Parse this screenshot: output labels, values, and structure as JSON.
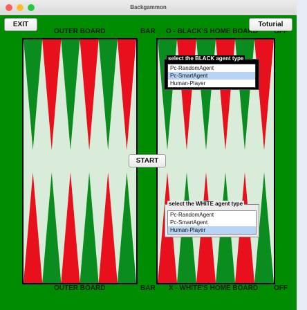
{
  "window": {
    "title": "Backgammon"
  },
  "toolbar": {
    "exit_label": "EXIT",
    "tutorial_label": "Toturial",
    "start_label": "START"
  },
  "board_labels": {
    "top_outer": "OUTER BOARD",
    "top_bar": "BAR",
    "top_home": "O - BLACK'S HOME BOARD",
    "top_off": "OFF",
    "bottom_outer": "OUTER BOARD",
    "bottom_bar": "BAR",
    "bottom_home": "X - WHITE'S HOME BOARD",
    "bottom_off": "OFF"
  },
  "black_agent": {
    "legend": "select the BLACK agent type",
    "options": [
      "Pc-RandomAgent",
      "Pc-SmartAgent",
      "Human-Player"
    ],
    "selected": "Pc-SmartAgent"
  },
  "white_agent": {
    "legend": "select the WHITE agent type",
    "options": [
      "Pc-RandomAgent",
      "Pc-SmartAgent",
      "Human-Player"
    ],
    "selected": "Human-Player"
  },
  "colors": {
    "board_green": "#008c00",
    "point_red": "#e8101c",
    "point_green": "#0a8c1e",
    "panel_bg": "#d9ecd9",
    "selection": "#b8d4f5"
  }
}
